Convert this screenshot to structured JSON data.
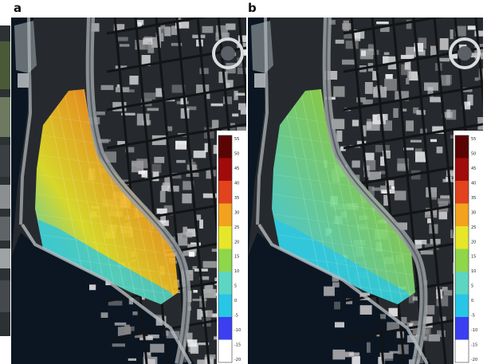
{
  "panels": [
    {
      "label": "a",
      "colorbar_ticks": [
        "55",
        "50",
        "45",
        "40",
        "35",
        "30",
        "25",
        "20",
        "15",
        "10",
        "5",
        "0",
        "-5",
        "-10",
        "-15",
        "-20"
      ]
    },
    {
      "label": "b",
      "colorbar_ticks": [
        "55",
        "50",
        "45",
        "40",
        "35",
        "30",
        "25",
        "20",
        "15",
        "10",
        "5",
        "0",
        "-5",
        "-10",
        "-15",
        "-20"
      ]
    }
  ],
  "colors": {
    "water": "#0b1622",
    "land": "#262a2e",
    "road": "#9aa0a3",
    "colormap": [
      "#ffffff",
      "#3b3ff0",
      "#27c6e6",
      "#5cd6c2",
      "#8fd64a",
      "#e6e62a",
      "#f2a21f",
      "#e0431d",
      "#a00c0c",
      "#5a0404"
    ]
  }
}
